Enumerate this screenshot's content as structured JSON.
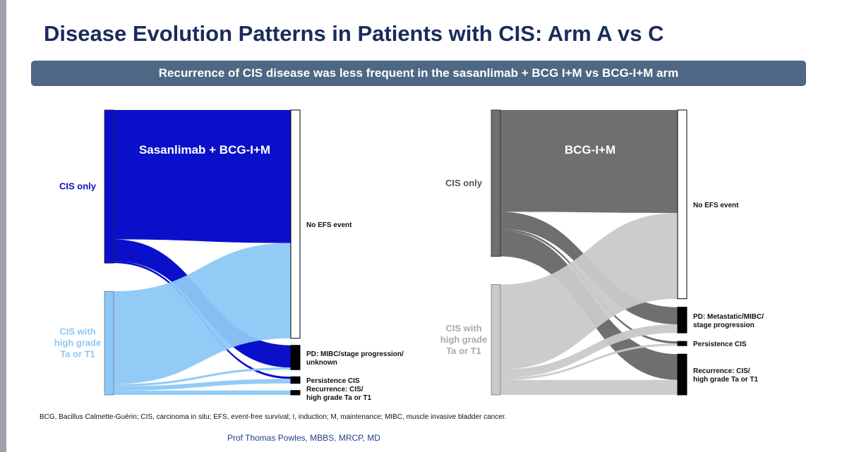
{
  "slide": {
    "title": "Disease Evolution Patterns in Patients with CIS: Arm A vs C",
    "banner": "Recurrence of CIS disease was less frequent in the sasanlimab + BCG I+M vs BCG-I+M arm",
    "footnote": "BCG, Bacillus Calmette-Guérin; CIS, carcinoma in situ; EFS, event-free survival; I, induction; M, maintenance; MIBC, muscle invasive bladder cancer.",
    "presenter": "Prof Thomas Powles, MBBS, MRCP, MD"
  },
  "chart_data": [
    {
      "type": "sankey",
      "title": "Sasanlimab  + BCG-I+M",
      "sources": [
        {
          "name": "CIS only",
          "lines": [
            "CIS only"
          ],
          "color": "#0a10c9"
        },
        {
          "name": "CIS with high grade Ta or T1",
          "lines": [
            "CIS with",
            "high grade",
            "Ta or T1"
          ],
          "color": "#8cc8f5"
        }
      ],
      "targets": [
        {
          "name": "No EFS event",
          "lines": [
            "No EFS event"
          ]
        },
        {
          "name": "PD: MIBC/stage progression/ unknown",
          "lines": [
            "PD: MIBC/stage progression/",
            "unknown"
          ]
        },
        {
          "name": "Persistence CIS",
          "lines": [
            "Persistence CIS"
          ]
        },
        {
          "name": "Recurrence: CIS/ high grade Ta or T1",
          "lines": [
            "Recurrence: CIS/",
            "high grade Ta or T1"
          ]
        }
      ],
      "flows": [
        {
          "source": 0,
          "target": 0,
          "value": 60
        },
        {
          "source": 0,
          "target": 1,
          "value": 10
        },
        {
          "source": 0,
          "target": 2,
          "value": 1
        },
        {
          "source": 1,
          "target": 0,
          "value": 43
        },
        {
          "source": 1,
          "target": 1,
          "value": 1
        },
        {
          "source": 1,
          "target": 2,
          "value": 2
        },
        {
          "source": 1,
          "target": 3,
          "value": 2
        }
      ]
    },
    {
      "type": "sankey",
      "title": "BCG-I+M",
      "sources": [
        {
          "name": "CIS only",
          "lines": [
            "CIS only"
          ],
          "color": "#6f6f6f"
        },
        {
          "name": "CIS with high grade Ta or T1",
          "lines": [
            "CIS with",
            "high grade",
            "Ta or T1"
          ],
          "color": "#c9c9c9"
        }
      ],
      "targets": [
        {
          "name": "No EFS event",
          "lines": [
            "No EFS event"
          ]
        },
        {
          "name": "PD: Metastatic/MIBC/ stage progression",
          "lines": [
            "PD: Metastatic/MIBC/",
            "stage progression"
          ]
        },
        {
          "name": "Persistence CIS",
          "lines": [
            "Persistence CIS"
          ]
        },
        {
          "name": "Recurrence: CIS/ high grade Ta or T1",
          "lines": [
            "Recurrence: CIS/",
            "high grade Ta or T1"
          ]
        }
      ],
      "flows": [
        {
          "source": 0,
          "target": 0,
          "value": 48
        },
        {
          "source": 0,
          "target": 1,
          "value": 8
        },
        {
          "source": 0,
          "target": 2,
          "value": 1
        },
        {
          "source": 0,
          "target": 3,
          "value": 12
        },
        {
          "source": 1,
          "target": 0,
          "value": 40
        },
        {
          "source": 1,
          "target": 1,
          "value": 4
        },
        {
          "source": 1,
          "target": 2,
          "value": 1
        },
        {
          "source": 1,
          "target": 3,
          "value": 7
        }
      ]
    }
  ]
}
